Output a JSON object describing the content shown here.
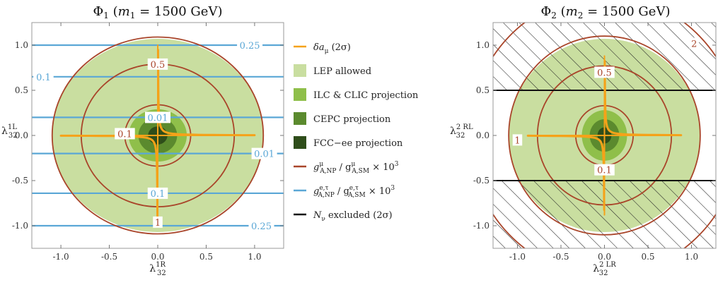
{
  "chart_data": [
    {
      "type": "contour",
      "title": "Φ₁ (m₁ = 1500 GeV)",
      "title_parts": {
        "phi": "Φ",
        "phi_sub": "1",
        "m": "m",
        "m_sub": "1",
        "rest": " = 1500 GeV)"
      },
      "xlabel": {
        "base": "λ",
        "sub": "32",
        "sup": "1R"
      },
      "ylabel": {
        "base": "λ",
        "sub": "32",
        "sup": "1L"
      },
      "xlim": [
        -1.3,
        1.3
      ],
      "ylim": [
        -1.25,
        1.25
      ],
      "xticks": [
        "-1.0",
        "-0.5",
        "0.0",
        "0.5",
        "1.0"
      ],
      "xtick_values": [
        -1.0,
        -0.5,
        0.0,
        0.5,
        1.0
      ],
      "yticks": [
        "1.0",
        "0.5",
        "0.0",
        "-0.5",
        "-1.0"
      ],
      "ytick_values": [
        1.0,
        0.5,
        0.0,
        -0.5,
        -1.0
      ],
      "regions": [
        {
          "name": "LEP allowed",
          "rx": 1.09,
          "ry": 1.07
        },
        {
          "name": "ILC & CLIC projection",
          "rx": 0.3,
          "ry": 0.29
        },
        {
          "name": "CEPC projection",
          "rx": 0.2,
          "ry": 0.2
        },
        {
          "name": "FCC-ee projection",
          "rx": 0.1,
          "ry": 0.1
        }
      ],
      "muon_contours": [
        {
          "label": "0.1",
          "radius": 0.34,
          "label_at": [
            -0.34,
            0.02
          ]
        },
        {
          "label": "0.5",
          "radius": 0.79,
          "label_at": [
            0.0,
            0.79
          ]
        },
        {
          "label": "1",
          "radius": 1.09,
          "label_at": [
            0.0,
            -0.96
          ]
        }
      ],
      "electron_contours": [
        {
          "label": "0.25",
          "y": 1.0,
          "label_at": [
            0.95,
            1.0
          ]
        },
        {
          "label": "0.1",
          "y": 0.65,
          "label_at": [
            -1.18,
            0.65
          ]
        },
        {
          "label": "0.01",
          "y": 0.2,
          "label_at": [
            0.0,
            0.2
          ]
        },
        {
          "label": "0.01",
          "y": -0.2,
          "label_at": [
            1.1,
            -0.2
          ]
        },
        {
          "label": "0.1",
          "y": -0.64,
          "label_at": [
            0.0,
            -0.64
          ]
        },
        {
          "label": "0.25",
          "y": -1.0,
          "label_at": [
            1.07,
            -1.0
          ]
        }
      ],
      "amu_band": {
        "arm_extent": 1.0,
        "hyperbola_k": 0.003
      }
    },
    {
      "type": "contour",
      "title": "Φ₂ (m₂ = 1500 GeV)",
      "title_parts": {
        "phi": "Φ",
        "phi_sub": "2",
        "m": "m",
        "m_sub": "2",
        "rest": " = 1500 GeV)"
      },
      "xlabel": {
        "base": "λ",
        "sub": "32",
        "sup": "2 LR"
      },
      "ylabel": {
        "base": "λ",
        "sub": "32",
        "sup": "2 RL"
      },
      "xlim": [
        -1.28,
        1.28
      ],
      "ylim": [
        -1.25,
        1.25
      ],
      "xticks": [
        "-1.0",
        "-0.5",
        "0.0",
        "0.5",
        "1.0"
      ],
      "xtick_values": [
        -1.0,
        -0.5,
        0.0,
        0.5,
        1.0
      ],
      "yticks": [
        "1.0",
        "0.5",
        "0.0",
        "-0.5",
        "-1.0"
      ],
      "ytick_values": [
        1.0,
        0.5,
        0.0,
        -0.5,
        -1.0
      ],
      "regions": [
        {
          "name": "LEP allowed",
          "rx": 1.1,
          "ry": 1.07
        },
        {
          "name": "ILC & CLIC projection",
          "rx": 0.26,
          "ry": 0.28
        },
        {
          "name": "CEPC projection",
          "rx": 0.17,
          "ry": 0.18
        },
        {
          "name": "FCC-ee projection",
          "rx": 0.08,
          "ry": 0.09
        }
      ],
      "muon_contours": [
        {
          "label": "0.1",
          "radius": 0.33,
          "label_at": [
            0.0,
            -0.38
          ]
        },
        {
          "label": "0.5",
          "radius": 0.77,
          "label_at": [
            0.0,
            0.7
          ]
        },
        {
          "label": "1",
          "radius": 1.1,
          "label_at": [
            -1.0,
            -0.05
          ]
        },
        {
          "label": "2",
          "radius": 1.55,
          "label_at": [
            1.03,
            1.02
          ]
        }
      ],
      "nu_excluded_lines": [
        0.5,
        -0.5
      ],
      "hatched_regions": [
        {
          "from": 0.5,
          "to": 1.25
        },
        {
          "from": -1.25,
          "to": -0.5
        }
      ],
      "amu_band": {
        "arm_extent": 0.88,
        "hyperbola_k": 0.003
      }
    }
  ],
  "legend": {
    "items": [
      {
        "kind": "line",
        "color": "#f5a219",
        "text": "δa",
        "sub": "μ",
        "rest": " (2σ)"
      },
      {
        "kind": "box",
        "color": "#c9dea0",
        "text": "LEP allowed"
      },
      {
        "kind": "box",
        "color": "#8fbf4a",
        "text": "ILC & CLIC projection"
      },
      {
        "kind": "box",
        "color": "#5b8a2e",
        "text": "CEPC projection"
      },
      {
        "kind": "box",
        "color": "#2e4d1a",
        "text": "FCC−ee projection"
      },
      {
        "kind": "line",
        "color": "#a9452a",
        "text": "g",
        "sup1": "μ",
        "sub1": "A,NP",
        "mid": " / g",
        "sup2": "μ",
        "sub2": "A,SM",
        "tail": " × 10",
        "sup3": "3"
      },
      {
        "kind": "line",
        "color": "#5aa7d6",
        "text": "g",
        "sup1": "e,τ",
        "sub1": "A,NP",
        "mid": " / g",
        "sup2": "e,τ",
        "sub2": "A,SM",
        "tail": " × 10",
        "sup3": "3"
      },
      {
        "kind": "line",
        "color": "#111111",
        "text": "N",
        "sub": "ν",
        "rest": " excluded (2σ)"
      }
    ]
  },
  "colors": {
    "lep": "#c9dea0",
    "ilc": "#8fbf4a",
    "cepc": "#5b8a2e",
    "fcc": "#2e4d1a",
    "muon": "#a9452a",
    "electron": "#5aa7d6",
    "amu": "#f5a219",
    "nu": "#111111",
    "frame": "#999999"
  }
}
